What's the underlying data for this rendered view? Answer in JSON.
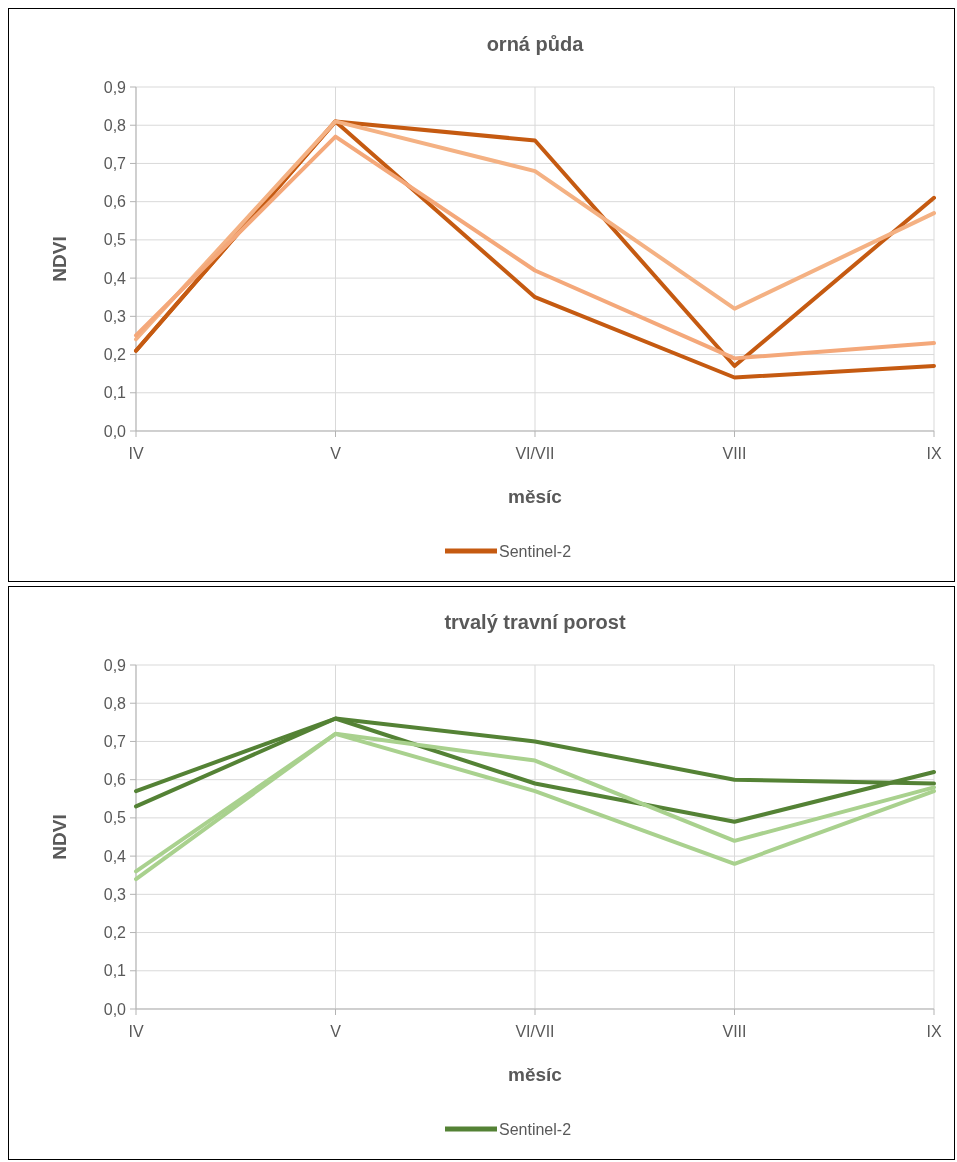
{
  "chart_data": [
    {
      "type": "line",
      "title": "orná půda",
      "xlabel": "měsíc",
      "ylabel": "NDVI",
      "categories": [
        "IV",
        "V",
        "VI/VII",
        "VIII",
        "IX"
      ],
      "ylim": [
        0,
        0.9
      ],
      "yticks": [
        {
          "value": 0,
          "label": "0,0"
        },
        {
          "value": 0.1,
          "label": "0,1"
        },
        {
          "value": 0.2,
          "label": "0,2"
        },
        {
          "value": 0.3,
          "label": "0,3"
        },
        {
          "value": 0.4,
          "label": "0,4"
        },
        {
          "value": 0.5,
          "label": "0,5"
        },
        {
          "value": 0.6,
          "label": "0,6"
        },
        {
          "value": 0.7,
          "label": "0,7"
        },
        {
          "value": 0.8,
          "label": "0,8"
        },
        {
          "value": 0.9,
          "label": "0,9"
        }
      ],
      "grid": true,
      "legend": "bottom",
      "marker": "none",
      "line_style": "solid",
      "series": [
        {
          "name": "Sentinel-2",
          "color": "#c55a11",
          "values": [
            0.21,
            0.81,
            0.76,
            0.17,
            0.61
          ]
        },
        {
          "color": "#c55a11",
          "values": [
            0.21,
            0.81,
            0.35,
            0.14,
            0.17
          ]
        },
        {
          "color": "#f4b183",
          "values": [
            0.24,
            0.81,
            0.68,
            0.32,
            0.57
          ]
        },
        {
          "color": "#f4a87a",
          "values": [
            0.25,
            0.77,
            0.42,
            0.19,
            0.23
          ]
        }
      ]
    },
    {
      "type": "line",
      "title": "trvalý travní porost",
      "xlabel": "měsíc",
      "ylabel": "NDVI",
      "categories": [
        "IV",
        "V",
        "VI/VII",
        "VIII",
        "IX"
      ],
      "ylim": [
        0,
        0.9
      ],
      "yticks": [
        {
          "value": 0,
          "label": "0,0"
        },
        {
          "value": 0.1,
          "label": "0,1"
        },
        {
          "value": 0.2,
          "label": "0,2"
        },
        {
          "value": 0.3,
          "label": "0,3"
        },
        {
          "value": 0.4,
          "label": "0,4"
        },
        {
          "value": 0.5,
          "label": "0,5"
        },
        {
          "value": 0.6,
          "label": "0,6"
        },
        {
          "value": 0.7,
          "label": "0,7"
        },
        {
          "value": 0.8,
          "label": "0,8"
        },
        {
          "value": 0.9,
          "label": "0,9"
        }
      ],
      "grid": true,
      "legend": "bottom",
      "marker": "none",
      "line_style": "solid",
      "series": [
        {
          "name": "Sentinel-2",
          "color": "#548235",
          "values": [
            0.57,
            0.76,
            0.7,
            0.6,
            0.59
          ]
        },
        {
          "color": "#548235",
          "values": [
            0.53,
            0.76,
            0.59,
            0.49,
            0.62
          ]
        },
        {
          "color": "#a9d18e",
          "values": [
            0.36,
            0.72,
            0.65,
            0.44,
            0.58
          ]
        },
        {
          "color": "#a9d18e",
          "values": [
            0.34,
            0.72,
            0.57,
            0.38,
            0.57
          ]
        }
      ]
    }
  ]
}
